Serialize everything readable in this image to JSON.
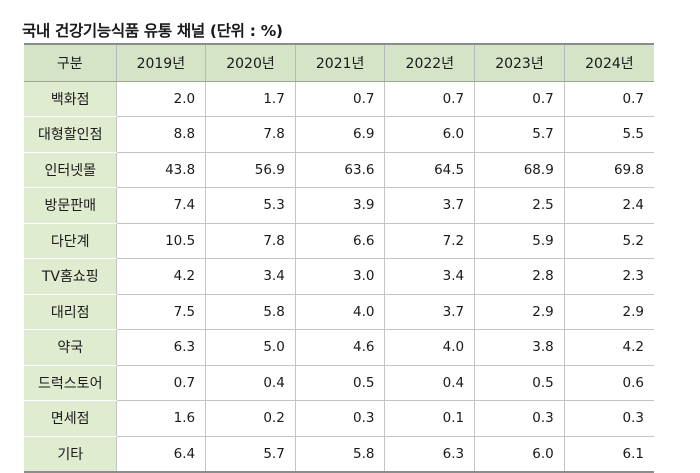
{
  "title": "국내 건강기능식품 유통 채널 (단위 : %)",
  "table": {
    "header": [
      "구분",
      "2019년",
      "2020년",
      "2021년",
      "2022년",
      "2023년",
      "2024년"
    ],
    "rows": [
      {
        "label": "백화점",
        "values": [
          "2.0",
          "1.7",
          "0.7",
          "0.7",
          "0.7",
          "0.7"
        ]
      },
      {
        "label": "대형할인점",
        "values": [
          "8.8",
          "7.8",
          "6.9",
          "6.0",
          "5.7",
          "5.5"
        ]
      },
      {
        "label": "인터넷몰",
        "values": [
          "43.8",
          "56.9",
          "63.6",
          "64.5",
          "68.9",
          "69.8"
        ]
      },
      {
        "label": "방문판매",
        "values": [
          "7.4",
          "5.3",
          "3.9",
          "3.7",
          "2.5",
          "2.4"
        ]
      },
      {
        "label": "다단계",
        "values": [
          "10.5",
          "7.8",
          "6.6",
          "7.2",
          "5.9",
          "5.2"
        ]
      },
      {
        "label": "TV홈쇼핑",
        "values": [
          "4.2",
          "3.4",
          "3.0",
          "3.4",
          "2.8",
          "2.3"
        ]
      },
      {
        "label": "대리점",
        "values": [
          "7.5",
          "5.8",
          "4.0",
          "3.7",
          "2.9",
          "2.9"
        ]
      },
      {
        "label": "약국",
        "values": [
          "6.3",
          "5.0",
          "4.6",
          "4.0",
          "3.8",
          "4.2"
        ]
      },
      {
        "label": "드럭스토어",
        "values": [
          "0.7",
          "0.4",
          "0.5",
          "0.4",
          "0.5",
          "0.6"
        ]
      },
      {
        "label": "면세점",
        "values": [
          "1.6",
          "0.2",
          "0.3",
          "0.1",
          "0.3",
          "0.3"
        ]
      },
      {
        "label": "기타",
        "values": [
          "6.4",
          "5.7",
          "5.8",
          "6.3",
          "6.0",
          "6.1"
        ]
      }
    ]
  }
}
